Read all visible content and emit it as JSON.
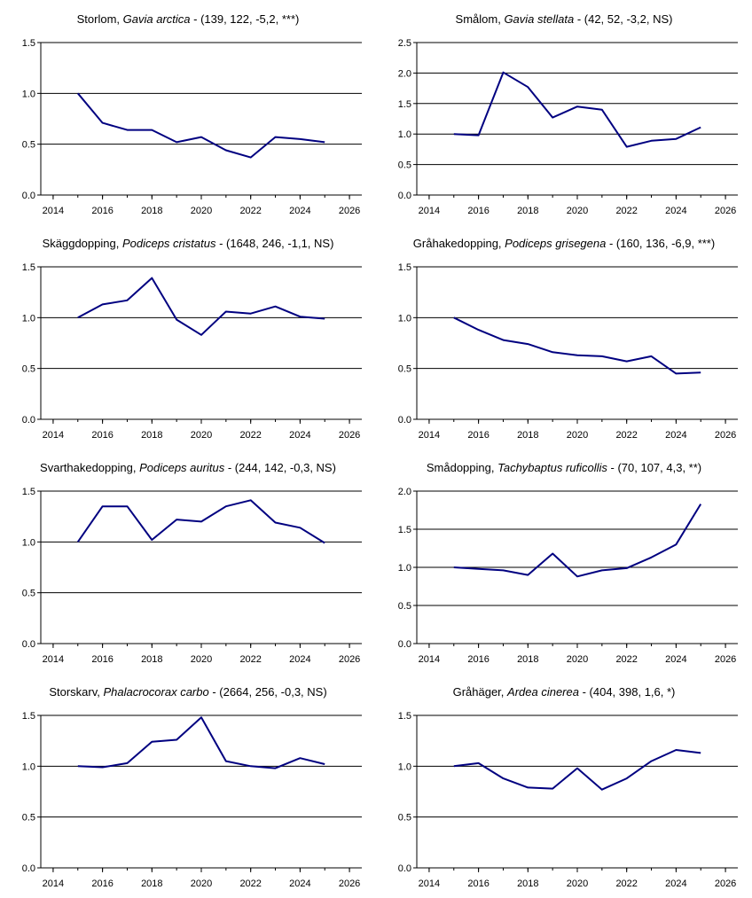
{
  "colors": {
    "line": "#000080",
    "axis": "#000000",
    "grid": "#000000"
  },
  "chart_data": [
    {
      "type": "line",
      "title": {
        "common": "Storlom, ",
        "latin": "Gavia arctica",
        "stats": " - (139, 122, -5,2, ***)"
      },
      "x": [
        2015,
        2016,
        2017,
        2018,
        2019,
        2020,
        2021,
        2022,
        2023,
        2024,
        2025
      ],
      "values": [
        1.0,
        0.71,
        0.64,
        0.64,
        0.52,
        0.57,
        0.44,
        0.37,
        0.57,
        0.55,
        0.52
      ],
      "ylim": [
        0,
        1.5
      ],
      "yticks": [
        "0.0",
        "0.5",
        "1.0",
        "1.5"
      ],
      "xlim": [
        2013.5,
        2026.5
      ],
      "xticks": [
        "2014",
        "2016",
        "2018",
        "2020",
        "2022",
        "2024",
        "2026"
      ],
      "grid": true
    },
    {
      "type": "line",
      "title": {
        "common": "Smålom, ",
        "latin": "Gavia stellata",
        "stats": " - (42, 52, -3,2, NS)"
      },
      "x": [
        2015,
        2016,
        2017,
        2018,
        2019,
        2020,
        2021,
        2022,
        2023,
        2024,
        2025
      ],
      "values": [
        1.0,
        0.98,
        2.01,
        1.77,
        1.27,
        1.45,
        1.4,
        0.79,
        0.89,
        0.92,
        1.11
      ],
      "ylim": [
        0,
        2.5
      ],
      "yticks": [
        "0.0",
        "0.5",
        "1.0",
        "1.5",
        "2.0",
        "2.5"
      ],
      "xlim": [
        2013.5,
        2026.5
      ],
      "xticks": [
        "2014",
        "2016",
        "2018",
        "2020",
        "2022",
        "2024",
        "2026"
      ],
      "grid": true
    },
    {
      "type": "line",
      "title": {
        "common": "Skäggdopping, ",
        "latin": "Podiceps cristatus",
        "stats": " - (1648, 246, -1,1, NS)"
      },
      "x": [
        2015,
        2016,
        2017,
        2018,
        2019,
        2020,
        2021,
        2022,
        2023,
        2024,
        2025
      ],
      "values": [
        1.0,
        1.13,
        1.17,
        1.39,
        0.98,
        0.83,
        1.06,
        1.04,
        1.11,
        1.01,
        0.99
      ],
      "ylim": [
        0,
        1.5
      ],
      "yticks": [
        "0.0",
        "0.5",
        "1.0",
        "1.5"
      ],
      "xlim": [
        2013.5,
        2026.5
      ],
      "xticks": [
        "2014",
        "2016",
        "2018",
        "2020",
        "2022",
        "2024",
        "2026"
      ],
      "grid": true
    },
    {
      "type": "line",
      "title": {
        "common": "Gråhakedopping, ",
        "latin": "Podiceps grisegena",
        "stats": " - (160, 136, -6,9, ***)"
      },
      "x": [
        2015,
        2016,
        2017,
        2018,
        2019,
        2020,
        2021,
        2022,
        2023,
        2024,
        2025
      ],
      "values": [
        1.0,
        0.88,
        0.78,
        0.74,
        0.66,
        0.63,
        0.62,
        0.57,
        0.62,
        0.45,
        0.46
      ],
      "ylim": [
        0,
        1.5
      ],
      "yticks": [
        "0.0",
        "0.5",
        "1.0",
        "1.5"
      ],
      "xlim": [
        2013.5,
        2026.5
      ],
      "xticks": [
        "2014",
        "2016",
        "2018",
        "2020",
        "2022",
        "2024",
        "2026"
      ],
      "grid": true
    },
    {
      "type": "line",
      "title": {
        "common": "Svarthakedopping, ",
        "latin": "Podiceps auritus",
        "stats": " - (244, 142, -0,3, NS)"
      },
      "x": [
        2015,
        2016,
        2017,
        2018,
        2019,
        2020,
        2021,
        2022,
        2023,
        2024,
        2025
      ],
      "values": [
        1.0,
        1.35,
        1.35,
        1.02,
        1.22,
        1.2,
        1.35,
        1.41,
        1.19,
        1.14,
        0.99
      ],
      "ylim": [
        0,
        1.5
      ],
      "yticks": [
        "0.0",
        "0.5",
        "1.0",
        "1.5"
      ],
      "xlim": [
        2013.5,
        2026.5
      ],
      "xticks": [
        "2014",
        "2016",
        "2018",
        "2020",
        "2022",
        "2024",
        "2026"
      ],
      "grid": true
    },
    {
      "type": "line",
      "title": {
        "common": "Smådopping, ",
        "latin": "Tachybaptus ruficollis",
        "stats": " - (70, 107, 4,3, **)"
      },
      "x": [
        2015,
        2016,
        2017,
        2018,
        2019,
        2020,
        2021,
        2022,
        2023,
        2024,
        2025
      ],
      "values": [
        1.0,
        0.98,
        0.96,
        0.9,
        1.18,
        0.88,
        0.96,
        0.99,
        1.13,
        1.3,
        1.83
      ],
      "ylim": [
        0,
        2.0
      ],
      "yticks": [
        "0.0",
        "0.5",
        "1.0",
        "1.5",
        "2.0"
      ],
      "xlim": [
        2013.5,
        2026.5
      ],
      "xticks": [
        "2014",
        "2016",
        "2018",
        "2020",
        "2022",
        "2024",
        "2026"
      ],
      "grid": true
    },
    {
      "type": "line",
      "title": {
        "common": "Storskarv, ",
        "latin": "Phalacrocorax carbo",
        "stats": " - (2664, 256, -0,3, NS)"
      },
      "x": [
        2015,
        2016,
        2017,
        2018,
        2019,
        2020,
        2021,
        2022,
        2023,
        2024,
        2025
      ],
      "values": [
        1.0,
        0.99,
        1.03,
        1.24,
        1.26,
        1.48,
        1.05,
        1.0,
        0.98,
        1.08,
        1.02
      ],
      "ylim": [
        0,
        1.5
      ],
      "yticks": [
        "0.0",
        "0.5",
        "1.0",
        "1.5"
      ],
      "xlim": [
        2013.5,
        2026.5
      ],
      "xticks": [
        "2014",
        "2016",
        "2018",
        "2020",
        "2022",
        "2024",
        "2026"
      ],
      "grid": true
    },
    {
      "type": "line",
      "title": {
        "common": "Gråhäger, ",
        "latin": "Ardea cinerea",
        "stats": " - (404, 398, 1,6, *)"
      },
      "x": [
        2015,
        2016,
        2017,
        2018,
        2019,
        2020,
        2021,
        2022,
        2023,
        2024,
        2025
      ],
      "values": [
        1.0,
        1.03,
        0.88,
        0.79,
        0.78,
        0.98,
        0.77,
        0.88,
        1.05,
        1.16,
        1.13
      ],
      "ylim": [
        0,
        1.5
      ],
      "yticks": [
        "0.0",
        "0.5",
        "1.0",
        "1.5"
      ],
      "xlim": [
        2013.5,
        2026.5
      ],
      "xticks": [
        "2014",
        "2016",
        "2018",
        "2020",
        "2022",
        "2024",
        "2026"
      ],
      "grid": true
    }
  ]
}
